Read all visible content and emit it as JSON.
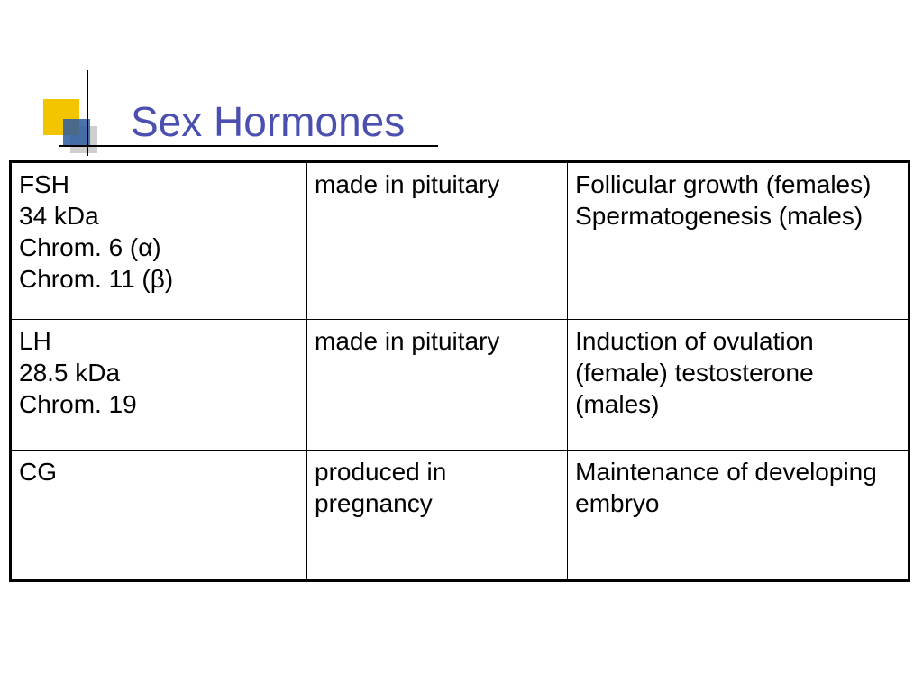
{
  "slide": {
    "title": "Sex Hormones",
    "title_color": "#4a4fb0",
    "title_fontsize": 46,
    "bullet_colors": {
      "yellow": "#f3c400",
      "blue": "#2c5aa0"
    },
    "table": {
      "border_color": "#000000",
      "font_size": 28,
      "columns": [
        {
          "width_pct": 33
        },
        {
          "width_pct": 29
        },
        {
          "width_pct": 38
        }
      ],
      "rows": [
        {
          "c1": [
            "FSH",
            "34 kDa",
            "Chrom. 6 (α)",
            "Chrom. 11 (β)"
          ],
          "c2": [
            "made in pituitary"
          ],
          "c3": [
            "Follicular growth (females)",
            "Spermatogenesis (males)"
          ]
        },
        {
          "c1": [
            "LH",
            "28.5 kDa",
            "Chrom. 19"
          ],
          "c2": [
            "made in pituitary"
          ],
          "c3": [
            "Induction of ovulation (female) testosterone (males)"
          ]
        },
        {
          "c1": [
            "CG"
          ],
          "c2": [
            "produced in pregnancy"
          ],
          "c3": [
            "Maintenance of developing embryo"
          ]
        }
      ]
    }
  }
}
